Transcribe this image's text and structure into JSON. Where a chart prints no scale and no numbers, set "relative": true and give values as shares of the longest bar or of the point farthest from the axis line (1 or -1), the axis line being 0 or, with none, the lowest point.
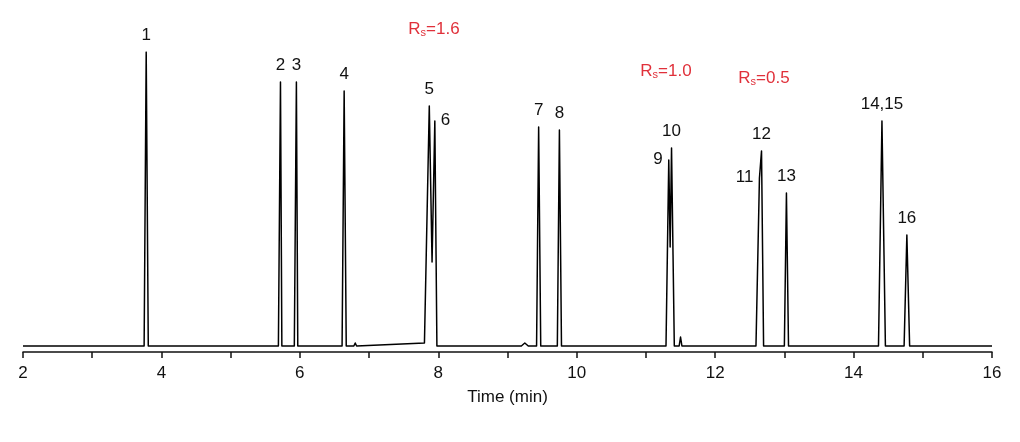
{
  "chart_data": {
    "type": "line",
    "relative": true,
    "xlabel": "Time (min)",
    "xlim": [
      2,
      16
    ],
    "xticks": [
      2,
      {
        "value": 3,
        "label": null
      },
      4,
      {
        "value": 5,
        "label": null
      },
      6,
      {
        "value": 7,
        "label": null
      },
      8,
      {
        "value": 9,
        "label": null
      },
      10,
      {
        "value": 11,
        "label": null
      },
      12,
      {
        "value": 13,
        "label": null
      },
      14,
      {
        "value": 15,
        "label": null
      },
      16
    ],
    "grid": false,
    "marker": "none",
    "line_style": "solid",
    "series": [
      {
        "color": "#000000",
        "x": [
          2,
          3.75,
          3.78,
          3.81,
          5.69,
          5.72,
          5.74,
          5.92,
          5.95,
          5.97,
          6.61,
          6.64,
          6.67,
          6.78,
          6.8,
          6.82,
          7.8,
          7.87,
          7.91,
          7.95,
          7.98,
          9.2,
          9.25,
          9.3,
          9.42,
          9.45,
          9.48,
          9.72,
          9.75,
          9.78,
          11.29,
          11.33,
          11.35,
          11.37,
          11.41,
          11.48,
          11.5,
          11.52,
          12.59,
          12.64,
          12.67,
          12.7,
          13.0,
          13.03,
          13.06,
          14.36,
          14.41,
          14.46,
          14.73,
          14.77,
          14.81,
          16
        ],
        "values": [
          0.02,
          0.02,
          1.0,
          0.02,
          0.02,
          0.9,
          0.02,
          0.02,
          0.9,
          0.02,
          0.02,
          0.87,
          0.02,
          0.02,
          0.03,
          0.02,
          0.03,
          0.82,
          0.3,
          0.77,
          0.02,
          0.02,
          0.03,
          0.02,
          0.02,
          0.75,
          0.02,
          0.02,
          0.74,
          0.02,
          0.02,
          0.64,
          0.35,
          0.68,
          0.02,
          0.02,
          0.05,
          0.02,
          0.02,
          0.58,
          0.67,
          0.02,
          0.02,
          0.53,
          0.02,
          0.02,
          0.77,
          0.02,
          0.02,
          0.39,
          0.02,
          0.02
        ]
      }
    ],
    "annotations": [
      {
        "text": "1",
        "x": 3.78,
        "y": 1.0
      },
      {
        "text": "2",
        "x": 5.72,
        "y": 0.9
      },
      {
        "text": "3",
        "x": 5.95,
        "y": 0.9
      },
      {
        "text": "4",
        "x": 6.64,
        "y": 0.87
      },
      {
        "text": "5",
        "x": 7.87,
        "y": 0.82
      },
      {
        "text": "6",
        "x": 7.95,
        "y": 0.77
      },
      {
        "text": "7",
        "x": 9.45,
        "y": 0.75
      },
      {
        "text": "8",
        "x": 9.75,
        "y": 0.74
      },
      {
        "text": "9",
        "x": 11.33,
        "y": 0.64
      },
      {
        "text": "10",
        "x": 11.37,
        "y": 0.68
      },
      {
        "text": "11",
        "x": 12.64,
        "y": 0.58
      },
      {
        "text": "12",
        "x": 12.67,
        "y": 0.67
      },
      {
        "text": "13",
        "x": 13.03,
        "y": 0.53
      },
      {
        "text": "14,15",
        "x": 14.41,
        "y": 0.77
      },
      {
        "text": "16",
        "x": 14.77,
        "y": 0.39
      },
      "R$_{s}$=1.6",
      "R$_{s}$=1.0",
      "R$_{s}$=0.5"
    ]
  }
}
